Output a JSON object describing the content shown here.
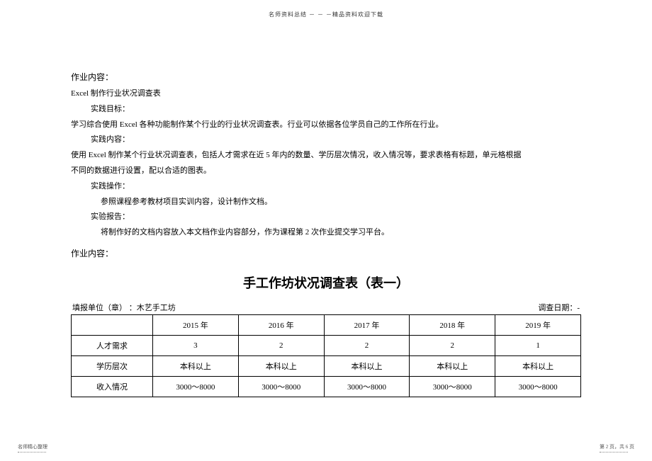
{
  "header_note": "名师资料总结 － － －精品资料欢迎下载",
  "section1_title": "作业内容：",
  "line1": "Excel   制作行业状况调查表",
  "practice_goal_label": "实践目标：",
  "practice_goal_text": "学习综合使用   Excel   各种功能制作某个行业的行业状况调查表。行业可以依据各位学员自己的工作所在行业。",
  "practice_content_label": "实践内容：",
  "practice_content_text1": "使用 Excel   制作某个行业状况调查表，包括人才需求在近      5 年内的数量、学历层次情况，收入情况等，要求表格有标题，单元格根据",
  "practice_content_text2": "不同的数据进行设置，配以合适的图表。",
  "practice_op_label": "实践操作：",
  "practice_op_text": "参照课程参考教材项目实训内容，设计制作文档。",
  "exp_report_label": "实验报告：",
  "exp_report_text": "将制作好的文档内容放入本文档作业内容部分，作为课程第      2 次作业提交学习平台。",
  "section2_title": "作业内容：",
  "main_title": "手工作坊状况调查表（表一）",
  "meta_left": "填报单位（章）   ：木艺手工坊",
  "meta_right": "调查日期：-",
  "table": {
    "columns": [
      "",
      "2015 年",
      "2016 年",
      "2017 年",
      "2018 年",
      "2019 年"
    ],
    "rows": [
      [
        "人才需求",
        "3",
        "2",
        "2",
        "2",
        "1"
      ],
      [
        "学历层次",
        "本科以上",
        "本科以上",
        "本科以上",
        "本科以上",
        "本科以上"
      ],
      [
        "收入情况",
        "3000～8000",
        "3000～8000",
        "3000～8000",
        "3000～8000",
        "3000～8000"
      ]
    ],
    "col_widths": [
      "16%",
      "16.8%",
      "16.8%",
      "16.8%",
      "16.8%",
      "16.8%"
    ],
    "border_color": "#000000",
    "background_color": "#ffffff"
  },
  "footer_left": "名师精心整理",
  "footer_right": "第 2 页，共 6 页"
}
